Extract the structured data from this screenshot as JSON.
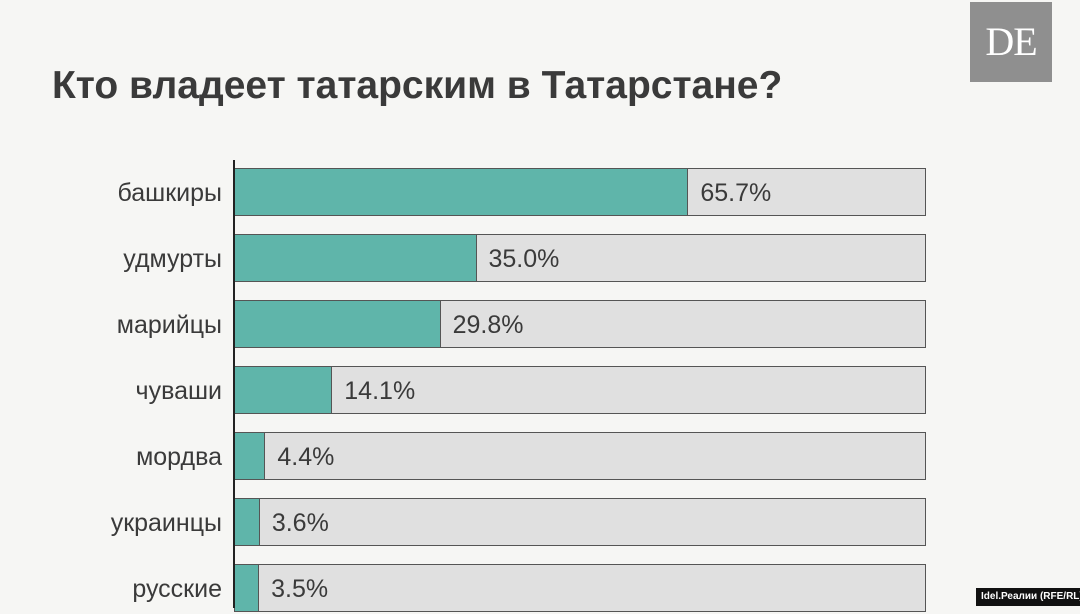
{
  "logo": {
    "text": "DE"
  },
  "title": "Кто владеет татарским в Татарстане?",
  "source": "Idel.Реалии (RFE/RL)",
  "colors": {
    "bar": "#5fb5aa",
    "track": "#e0e0e0",
    "text": "#3a3a3a"
  },
  "chart_data": {
    "type": "bar",
    "orientation": "horizontal",
    "title": "Кто владеет татарским в Татарстане?",
    "categories": [
      "башкиры",
      "удмурты",
      "марийцы",
      "чуваши",
      "мордва",
      "украинцы",
      "русские"
    ],
    "values": [
      65.7,
      35.0,
      29.8,
      14.1,
      4.4,
      3.6,
      3.5
    ],
    "labels": [
      "65.7%",
      "35.0%",
      "29.8%",
      "14.1%",
      "4.4%",
      "3.6%",
      "3.5%"
    ],
    "xlim": [
      0,
      100
    ],
    "unit": "%"
  }
}
